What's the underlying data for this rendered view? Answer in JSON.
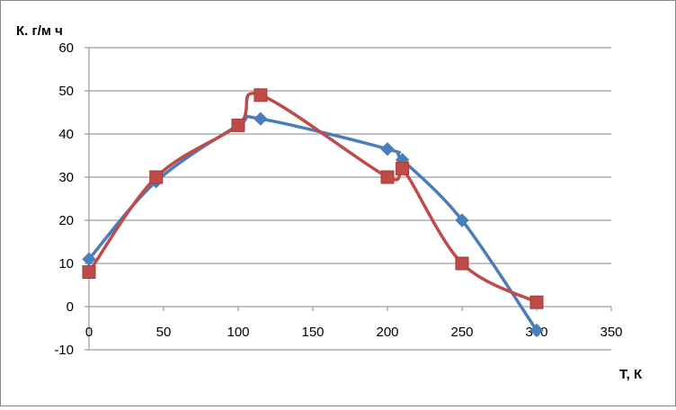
{
  "chart_data": {
    "type": "scatter",
    "title": "",
    "ylabel": "К. г/м ч",
    "xlabel": "Т, К",
    "xlim": [
      0,
      350
    ],
    "ylim": [
      -10,
      60
    ],
    "x_ticks": [
      "0",
      "50",
      "100",
      "150",
      "200",
      "250",
      "300",
      "350"
    ],
    "y_ticks": [
      "-10",
      "0",
      "10",
      "20",
      "30",
      "40",
      "50",
      "60"
    ],
    "grid": "horizontal",
    "legend": "none",
    "smooth_lines": true,
    "series": [
      {
        "marker": "diamond",
        "color": "#4a7ebb",
        "points": [
          {
            "x": 0,
            "y": 11
          },
          {
            "x": 45,
            "y": 29
          },
          {
            "x": 100,
            "y": 42
          },
          {
            "x": 115,
            "y": 43.5
          },
          {
            "x": 200,
            "y": 36.5
          },
          {
            "x": 210,
            "y": 34
          },
          {
            "x": 250,
            "y": 20
          },
          {
            "x": 300,
            "y": -5.5
          }
        ]
      },
      {
        "marker": "square",
        "color": "#be4b48",
        "points": [
          {
            "x": 0,
            "y": 8
          },
          {
            "x": 45,
            "y": 30
          },
          {
            "x": 100,
            "y": 42
          },
          {
            "x": 115,
            "y": 49
          },
          {
            "x": 200,
            "y": 30
          },
          {
            "x": 210,
            "y": 32
          },
          {
            "x": 250,
            "y": 10
          },
          {
            "x": 300,
            "y": 1
          }
        ]
      }
    ]
  }
}
